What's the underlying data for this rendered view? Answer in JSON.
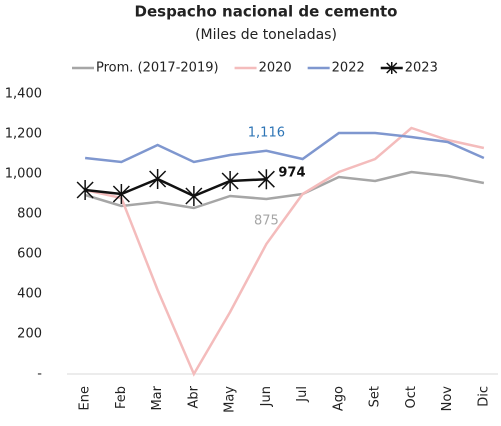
{
  "chart_data": {
    "type": "line",
    "title": "Despacho nacional de cemento",
    "subtitle": "(Miles de toneladas)",
    "categories": [
      "Ene",
      "Feb",
      "Mar",
      "Abr",
      "May",
      "Jun",
      "Jul",
      "Ago",
      "Set",
      "Oct",
      "Nov",
      "Dic"
    ],
    "series": [
      {
        "name": "Prom. (2017-2019)",
        "color": "#a6a6a6",
        "values": [
          895,
          840,
          860,
          830,
          890,
          875,
          900,
          985,
          965,
          1010,
          990,
          955
        ],
        "value_labels": [
          null,
          null,
          null,
          null,
          null,
          "875",
          null,
          null,
          null,
          null,
          null,
          null
        ],
        "label_color": "#a6a6a6"
      },
      {
        "name": "2020",
        "color": "#f4bcbc",
        "values": [
          920,
          880,
          420,
          0,
          310,
          650,
          900,
          1010,
          1075,
          1230,
          1170,
          1130
        ]
      },
      {
        "name": "2022",
        "color": "#7f97cf",
        "values": [
          1080,
          1060,
          1145,
          1060,
          1095,
          1116,
          1075,
          1205,
          1205,
          1185,
          1160,
          1080
        ],
        "value_labels": [
          null,
          null,
          null,
          null,
          null,
          "1,116",
          null,
          null,
          null,
          null,
          null,
          null
        ],
        "label_color": "#2e75b6"
      },
      {
        "name": "2023",
        "color": "#111111",
        "marker": "asterisk",
        "values": [
          920,
          900,
          975,
          890,
          965,
          974,
          null,
          null,
          null,
          null,
          null,
          null
        ],
        "value_labels": [
          null,
          null,
          null,
          null,
          null,
          "974",
          null,
          null,
          null,
          null,
          null,
          null
        ],
        "label_color": "#111111"
      }
    ],
    "ylim": [
      0,
      1400
    ],
    "yticks": [
      {
        "value": 0,
        "label": "-"
      },
      200,
      400,
      600,
      800,
      {
        "value": 1000,
        "label": "1,000"
      },
      {
        "value": 1200,
        "label": "1,200"
      },
      {
        "value": 1400,
        "label": "1,400"
      }
    ],
    "grid": false,
    "legend": "top"
  }
}
